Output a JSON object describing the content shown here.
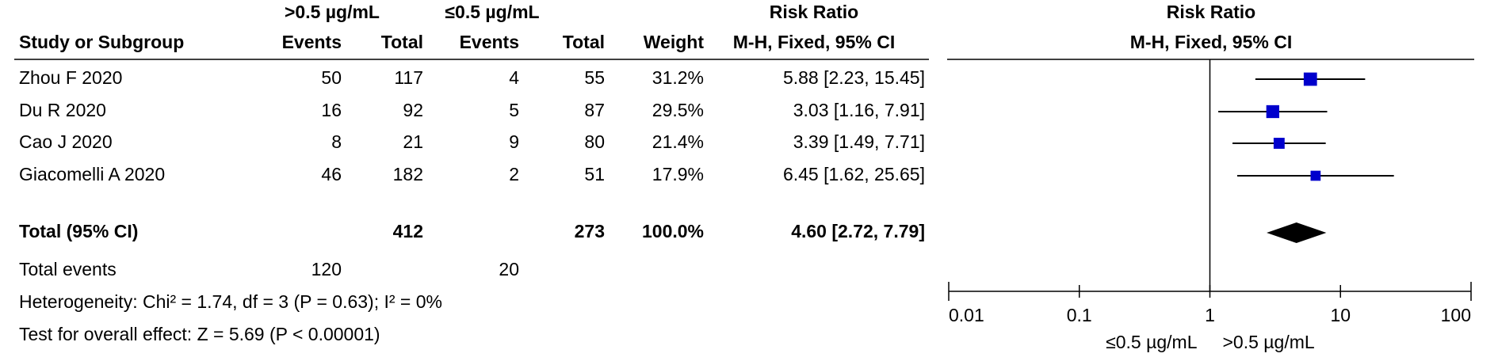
{
  "chart_data": {
    "type": "forest",
    "group_headers": [
      ">0.5 µg/mL",
      "≤0.5 µg/mL"
    ],
    "columns": [
      "Study or Subgroup",
      "Events",
      "Total",
      "Events",
      "Total",
      "Weight"
    ],
    "effect_header": [
      "Risk Ratio",
      "M-H, Fixed, 95% CI"
    ],
    "plot_header": [
      "Risk Ratio",
      "M-H, Fixed, 95% CI"
    ],
    "color": "#0000cc",
    "studies": [
      {
        "name": "Zhou F 2020",
        "events1": 50,
        "total1": 117,
        "events2": 4,
        "total2": 55,
        "weight": 31.2,
        "weight_label": "31.2%",
        "rr": 5.88,
        "ci": [
          2.23,
          15.45
        ],
        "rr_label": "5.88 [2.23, 15.45]"
      },
      {
        "name": "Du R 2020",
        "events1": 16,
        "total1": 92,
        "events2": 5,
        "total2": 87,
        "weight": 29.5,
        "weight_label": "29.5%",
        "rr": 3.03,
        "ci": [
          1.16,
          7.91
        ],
        "rr_label": "3.03 [1.16, 7.91]"
      },
      {
        "name": "Cao J 2020",
        "events1": 8,
        "total1": 21,
        "events2": 9,
        "total2": 80,
        "weight": 21.4,
        "weight_label": "21.4%",
        "rr": 3.39,
        "ci": [
          1.49,
          7.71
        ],
        "rr_label": "3.39 [1.49, 7.71]"
      },
      {
        "name": "Giacomelli A 2020",
        "events1": 46,
        "total1": 182,
        "events2": 2,
        "total2": 51,
        "weight": 17.9,
        "weight_label": "17.9%",
        "rr": 6.45,
        "ci": [
          1.62,
          25.65
        ],
        "rr_label": "6.45 [1.62, 25.65]"
      }
    ],
    "total": {
      "name": "Total (95% CI)",
      "total1": 412,
      "total2": 273,
      "weight": 100,
      "weight_label": "100.0%",
      "rr": 4.6,
      "ci": [
        2.72,
        7.79
      ],
      "rr_label": "4.60 [2.72, 7.79]"
    },
    "total_events": {
      "name": "Total events",
      "events1": 120,
      "events2": 20
    },
    "heterogeneity": "Heterogeneity: Chi² = 1.74, df = 3 (P = 0.63); I² = 0%",
    "overall_effect": "Test for overall effect: Z = 5.69 (P < 0.00001)",
    "log_x": true,
    "xlim": [
      0.01,
      100
    ],
    "xticks": [
      0.01,
      0.1,
      1,
      10,
      100
    ],
    "null_line": 1,
    "favours": [
      "≤0.5 µg/mL",
      ">0.5 µg/mL"
    ]
  }
}
